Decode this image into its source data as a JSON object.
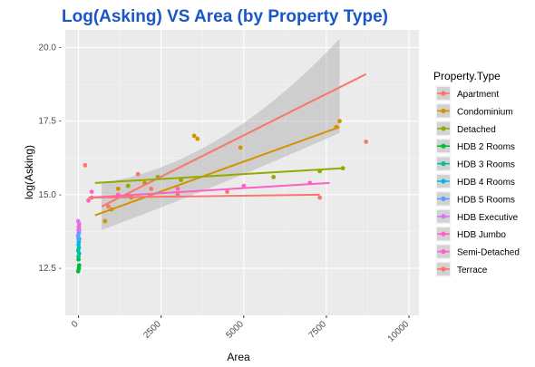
{
  "chart_data": {
    "type": "scatter",
    "title": "Log(Asking) VS Area (by Property Type)",
    "xlabel": "Area",
    "ylabel": "log(Asking)",
    "xlim": [
      -400,
      10300
    ],
    "ylim": [
      10.9,
      20.6
    ],
    "xticks": [
      0,
      2500,
      5000,
      7500,
      10000
    ],
    "xtick_labels": [
      "0",
      "2500",
      "5000",
      "7500",
      "10000"
    ],
    "yticks": [
      12.5,
      15.0,
      17.5,
      20.0
    ],
    "ytick_labels": [
      "12.5 -",
      "15.0 -",
      "17.5 -",
      "20.0 -"
    ],
    "grid": true,
    "legend_title": "Property.Type",
    "legend_position": "right",
    "series": [
      {
        "name": "Apartment",
        "color": "#F8766D",
        "trend": {
          "x": [
            700,
            8700
          ],
          "y": [
            14.6,
            19.1
          ]
        },
        "band": {
          "x": [
            700,
            4300,
            7900
          ],
          "upper": [
            15.4,
            16.0,
            20.3
          ],
          "lower": [
            13.8,
            15.3,
            17.1
          ]
        },
        "points": [
          [
            8700,
            16.8
          ],
          [
            1800,
            15.7
          ],
          [
            900,
            14.6
          ],
          [
            2200,
            15.2
          ]
        ]
      },
      {
        "name": "Condominium",
        "color": "#D39200",
        "trend": {
          "x": [
            500,
            7900
          ],
          "y": [
            14.3,
            17.3
          ]
        },
        "points": [
          [
            7900,
            17.5
          ],
          [
            7800,
            17.3
          ],
          [
            3600,
            16.9
          ],
          [
            3500,
            17.0
          ],
          [
            4900,
            16.6
          ],
          [
            1200,
            15.2
          ],
          [
            1600,
            14.9
          ],
          [
            2000,
            15.4
          ],
          [
            800,
            14.1
          ],
          [
            1000,
            14.5
          ]
        ]
      },
      {
        "name": "Detached",
        "color": "#93AA00",
        "trend": {
          "x": [
            500,
            8000
          ],
          "y": [
            15.4,
            15.9
          ]
        },
        "points": [
          [
            8000,
            15.9
          ],
          [
            7300,
            15.8
          ],
          [
            5900,
            15.6
          ],
          [
            3100,
            15.5
          ],
          [
            2400,
            15.6
          ],
          [
            1500,
            15.3
          ]
        ]
      },
      {
        "name": "HDB 2 Rooms",
        "color": "#00BA38",
        "points": [
          [
            -10,
            12.4
          ],
          [
            20,
            12.6
          ],
          [
            0,
            12.8
          ],
          [
            10,
            12.5
          ]
        ]
      },
      {
        "name": "HDB 3 Rooms",
        "color": "#00C19F",
        "points": [
          [
            0,
            12.9
          ],
          [
            20,
            13.0
          ],
          [
            -10,
            13.1
          ],
          [
            10,
            13.2
          ]
        ]
      },
      {
        "name": "HDB 4 Rooms",
        "color": "#00B9E3",
        "points": [
          [
            0,
            13.3
          ],
          [
            10,
            13.4
          ],
          [
            20,
            13.5
          ],
          [
            -10,
            13.6
          ]
        ]
      },
      {
        "name": "HDB 5 Rooms",
        "color": "#619CFF",
        "points": [
          [
            0,
            13.5
          ],
          [
            10,
            13.7
          ],
          [
            20,
            13.8
          ],
          [
            -10,
            13.6
          ]
        ]
      },
      {
        "name": "HDB Executive",
        "color": "#DB72FB",
        "points": [
          [
            0,
            13.8
          ],
          [
            10,
            13.9
          ],
          [
            20,
            14.0
          ],
          [
            -10,
            14.1
          ]
        ]
      },
      {
        "name": "HDB Jumbo",
        "color": "#FF61C3",
        "points": [
          [
            10,
            13.9
          ]
        ]
      },
      {
        "name": "Semi-Detached",
        "color": "#FF61C3",
        "trend": {
          "x": [
            300,
            7600
          ],
          "y": [
            14.9,
            15.4
          ]
        },
        "points": [
          [
            400,
            15.1
          ],
          [
            1200,
            15.0
          ],
          [
            3000,
            15.2
          ],
          [
            5000,
            15.3
          ],
          [
            7000,
            15.4
          ],
          [
            300,
            14.8
          ]
        ]
      },
      {
        "name": "Terrace",
        "color": "#F8766D",
        "trend": {
          "x": [
            300,
            7300
          ],
          "y": [
            14.9,
            15.0
          ]
        },
        "points": [
          [
            200,
            16.0
          ],
          [
            400,
            14.9
          ],
          [
            1500,
            15.0
          ],
          [
            3000,
            15.0
          ],
          [
            4500,
            15.1
          ],
          [
            7300,
            14.9
          ]
        ]
      }
    ],
    "legend_colors": [
      "#F8766D",
      "#D39200",
      "#93AA00",
      "#00BA38",
      "#00C19F",
      "#00B9E3",
      "#619CFF",
      "#619CFF",
      "#DB72FB",
      "#FF61C3",
      "#FF61C3"
    ],
    "legend_colors_note": ""
  },
  "colors": {
    "title": "#1a56c4",
    "panel": "#ebebeb",
    "grid_major": "#ffffff",
    "grid_minor": "#f5f5f5",
    "band": "#999999"
  }
}
